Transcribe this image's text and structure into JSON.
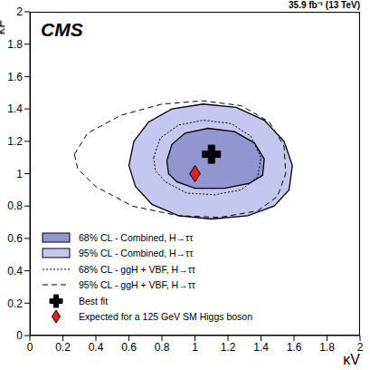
{
  "chart_data": {
    "type": "contour",
    "title": "CMS",
    "subtitle": "35.9 fb⁻¹ (13 TeV)",
    "xlabel": "κV",
    "ylabel": "κF",
    "xlim": [
      0,
      2
    ],
    "ylim": [
      0,
      2
    ],
    "xticks": [
      0,
      0.2,
      0.4,
      0.6,
      0.8,
      1,
      1.2,
      1.4,
      1.6,
      1.8,
      2
    ],
    "yticks": [
      0,
      0.2,
      0.4,
      0.6,
      0.8,
      1,
      1.2,
      1.4,
      1.6,
      1.8,
      2
    ],
    "grid": false,
    "legend": "lower left",
    "series": [
      {
        "name": "68% CL - Combined, H→ττ",
        "type": "contour_filled",
        "color": "#9296cf",
        "line_style": "solid",
        "x": [
          0.83,
          0.86,
          0.94,
          1.08,
          1.24,
          1.36,
          1.42,
          1.41,
          1.33,
          1.18,
          1.0,
          0.89,
          0.84
        ],
        "values": [
          1.08,
          1.18,
          1.25,
          1.28,
          1.26,
          1.19,
          1.09,
          0.99,
          0.94,
          0.91,
          0.91,
          0.95,
          1.0
        ]
      },
      {
        "name": "95% CL - Combined, H→ττ",
        "type": "contour_filled",
        "color": "#c5c7f0",
        "line_style": "solid",
        "x": [
          0.6,
          0.63,
          0.72,
          0.86,
          1.05,
          1.25,
          1.42,
          1.54,
          1.59,
          1.57,
          1.48,
          1.32,
          1.1,
          0.9,
          0.74,
          0.64
        ],
        "values": [
          1.05,
          1.2,
          1.32,
          1.4,
          1.43,
          1.41,
          1.33,
          1.2,
          1.05,
          0.9,
          0.8,
          0.74,
          0.72,
          0.74,
          0.81,
          0.92
        ]
      },
      {
        "name": "68% CL - ggH + VBF, H→ττ",
        "type": "contour",
        "color": "#000000",
        "line_style": "dotted",
        "x": [
          0.75,
          0.79,
          0.9,
          1.05,
          1.22,
          1.34,
          1.4,
          1.38,
          1.28,
          1.12,
          0.95,
          0.82,
          0.76
        ],
        "values": [
          1.1,
          1.22,
          1.3,
          1.33,
          1.31,
          1.23,
          1.1,
          0.98,
          0.9,
          0.87,
          0.88,
          0.95,
          1.02
        ]
      },
      {
        "name": "95% CL - ggH + VBF, H→ττ",
        "type": "contour",
        "color": "#000000",
        "line_style": "dashed",
        "x": [
          0.27,
          0.35,
          0.55,
          0.8,
          1.05,
          1.28,
          1.45,
          1.54,
          1.55,
          1.5,
          1.38,
          1.15,
          0.9,
          0.62,
          0.4,
          0.29
        ],
        "values": [
          1.12,
          1.25,
          1.36,
          1.43,
          1.45,
          1.42,
          1.32,
          1.17,
          1.0,
          0.86,
          0.77,
          0.73,
          0.74,
          0.8,
          0.92,
          1.03
        ]
      },
      {
        "name": "Best fit",
        "type": "scatter",
        "color": "#000000",
        "marker": "cross",
        "x": [
          1.1
        ],
        "values": [
          1.12
        ]
      },
      {
        "name": "Expected for a 125 GeV SM Higgs boson",
        "type": "scatter",
        "color": "#e0201b",
        "marker": "diamond",
        "x": [
          1
        ],
        "values": [
          1
        ]
      }
    ]
  }
}
